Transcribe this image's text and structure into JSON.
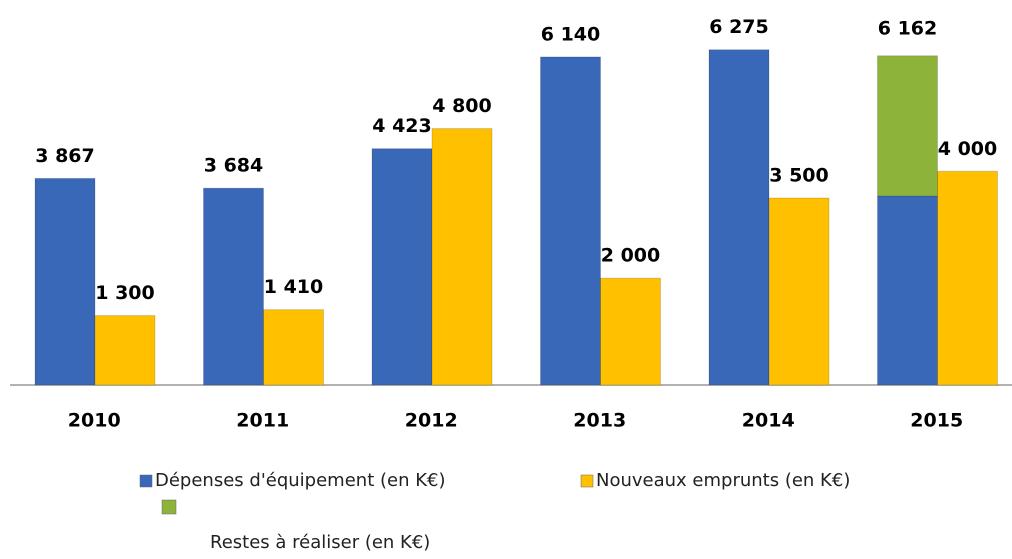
{
  "chart_data": {
    "type": "bar",
    "categories": [
      "2010",
      "2011",
      "2012",
      "2013",
      "2014",
      "2015"
    ],
    "series": [
      {
        "name": "Dépenses d'équipement (en K€)",
        "color": "#3a68b8",
        "values": [
          3867,
          3684,
          4423,
          6140,
          6275,
          3540
        ],
        "value_labels": [
          "3 867",
          "3 684",
          "4 423",
          "6 140",
          "6 275",
          null
        ],
        "group": 0
      },
      {
        "name": "Nouveaux emprunts (en K€)",
        "color": "#ffc000",
        "values": [
          1300,
          1410,
          4800,
          2000,
          3500,
          4000
        ],
        "value_labels": [
          "1 300",
          "1 410",
          "4 800",
          "2 000",
          "3 500",
          "4 000"
        ],
        "group": 1
      },
      {
        "name": "Restes à réaliser (en K€)",
        "color": "#8db33a",
        "values": [
          null,
          null,
          null,
          null,
          null,
          2622
        ],
        "group": 0
      }
    ],
    "annotations": [
      {
        "category": 5,
        "value": 6162,
        "label": "6 162"
      }
    ],
    "ylim": [
      0,
      7000
    ]
  }
}
